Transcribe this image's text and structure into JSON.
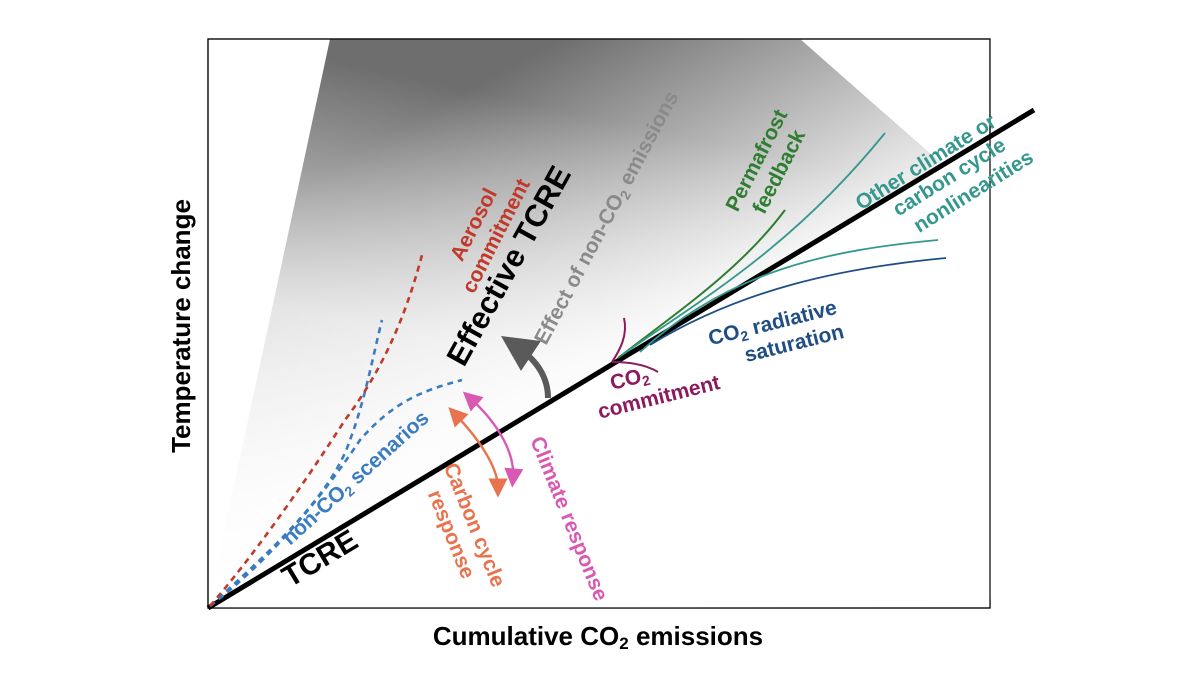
{
  "axes": {
    "x_label_pre": "Cumulative CO",
    "x_label_sub": "2",
    "x_label_post": " emissions",
    "y_label": "Temperature change"
  },
  "labels": {
    "tcre": "TCRE",
    "effective_tcre": "Effective TCRE",
    "effect_non_co2_pre": "Effect of non-CO",
    "effect_non_co2_sub": "2",
    "effect_non_co2_post": " emissions",
    "aerosol_line1": "Aerosol",
    "aerosol_line2": "commitment",
    "non_co2_pre": "non-CO",
    "non_co2_sub": "2",
    "non_co2_post": " scenarios",
    "carbon_cycle_line1": "Carbon cycle",
    "carbon_cycle_line2": "response",
    "climate_response": "Climate response",
    "co2_commitment_line1_pre": "CO",
    "co2_commitment_line1_sub": "2",
    "co2_commitment_line2": "commitment",
    "permafrost_line1": "Permafrost",
    "permafrost_line2": "feedback",
    "other_line1": "Other climate or",
    "other_line2": "carbon cycle",
    "other_line3": "nonlinearities",
    "radiative_line1_pre": "CO",
    "radiative_line1_sub": "2",
    "radiative_line1_post": " radiative",
    "radiative_line2": "saturation"
  },
  "colors": {
    "aerosol": "#c0392b",
    "non_co2": "#3a7cc1",
    "carbon_cycle": "#e8734f",
    "climate_response": "#d858b2",
    "co2_commitment": "#8b1a5e",
    "permafrost": "#2e7d32",
    "other": "#35988e",
    "radiative": "#1f4e85",
    "effect_arrow": "#5a5a5a",
    "effect_text": "#8a8a8a"
  }
}
